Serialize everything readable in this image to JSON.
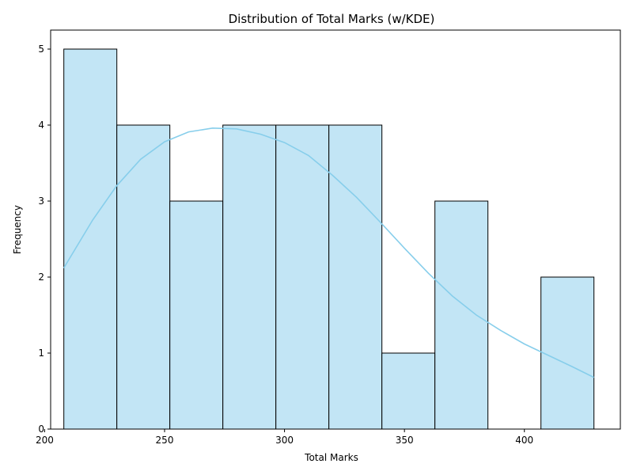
{
  "chart_data": {
    "type": "bar",
    "title": "Distribution of Total Marks (w/KDE)",
    "xlabel": "Total Marks",
    "ylabel": "Frequency",
    "xlim": [
      202.5,
      440
    ],
    "ylim": [
      0,
      5.25
    ],
    "x_ticks": [
      200,
      250,
      300,
      350,
      400
    ],
    "y_ticks": [
      0,
      1,
      2,
      3,
      4,
      5
    ],
    "bin_edges": [
      208,
      230.1,
      252.2,
      274.3,
      296.4,
      318.5,
      340.6,
      362.7,
      384.8,
      406.9,
      429
    ],
    "counts": [
      5,
      4,
      3,
      4,
      4,
      4,
      1,
      3,
      0,
      2
    ],
    "kde": {
      "x": [
        208,
        220,
        230,
        240,
        250,
        260,
        270,
        280,
        290,
        300,
        310,
        320,
        330,
        340,
        350,
        360,
        370,
        380,
        390,
        400,
        410,
        420,
        429
      ],
      "y": [
        2.12,
        2.75,
        3.2,
        3.55,
        3.78,
        3.91,
        3.96,
        3.95,
        3.88,
        3.77,
        3.6,
        3.34,
        3.05,
        2.72,
        2.38,
        2.05,
        1.75,
        1.5,
        1.3,
        1.12,
        0.97,
        0.82,
        0.68
      ]
    },
    "grid": false,
    "legend": "none"
  }
}
